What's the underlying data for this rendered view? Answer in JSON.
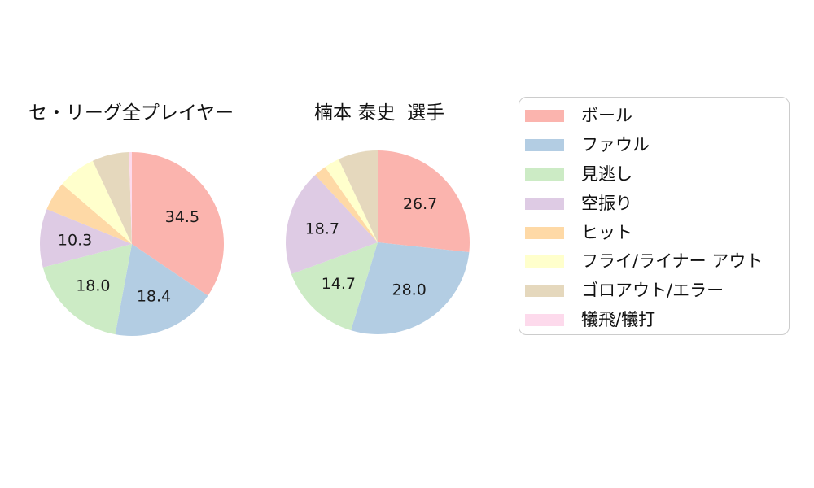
{
  "chart_data": [
    {
      "type": "pie",
      "title": "セ・リーグ全プレイヤー",
      "categories": [
        "ボール",
        "ファウル",
        "見逃し",
        "空振り",
        "ヒット",
        "フライ/ライナー アウト",
        "ゴロアウト/エラー",
        "犠飛/犠打"
      ],
      "values": [
        34.5,
        18.4,
        18.0,
        10.3,
        5.1,
        6.7,
        6.5,
        0.5
      ],
      "labels": [
        "34.5",
        "18.4",
        "18.0",
        "10.3",
        "",
        "",
        "",
        ""
      ],
      "colors": [
        "#fbb4ae",
        "#b3cde3",
        "#ccebc5",
        "#decbe4",
        "#fed9a6",
        "#ffffcc",
        "#e5d8bd",
        "#fddaec"
      ],
      "start_angle": "12-oclock",
      "direction": "clockwise",
      "label_radius_frac": 0.62,
      "label_color": "#1a1a1a"
    },
    {
      "type": "pie",
      "title": "楠本 泰史  選手",
      "categories": [
        "ボール",
        "ファウル",
        "見逃し",
        "空振り",
        "ヒット",
        "フライ/ライナー アウト",
        "ゴロアウト/エラー",
        "犠飛/犠打"
      ],
      "values": [
        26.7,
        28.0,
        14.7,
        18.7,
        2.2,
        2.7,
        7.0,
        0.0
      ],
      "labels": [
        "26.7",
        "28.0",
        "14.7",
        "18.7",
        "",
        "",
        "",
        ""
      ],
      "colors": [
        "#fbb4ae",
        "#b3cde3",
        "#ccebc5",
        "#decbe4",
        "#fed9a6",
        "#ffffcc",
        "#e5d8bd",
        "#fddaec"
      ],
      "start_angle": "12-oclock",
      "direction": "clockwise",
      "label_radius_frac": 0.62,
      "label_color": "#1a1a1a"
    }
  ],
  "legend": {
    "position": "right",
    "border_color": "#cccccc",
    "items": [
      {
        "label": "ボール",
        "color": "#fbb4ae"
      },
      {
        "label": "ファウル",
        "color": "#b3cde3"
      },
      {
        "label": "見逃し",
        "color": "#ccebc5"
      },
      {
        "label": "空振り",
        "color": "#decbe4"
      },
      {
        "label": "ヒット",
        "color": "#fed9a6"
      },
      {
        "label": "フライ/ライナー アウト",
        "color": "#ffffcc"
      },
      {
        "label": "ゴロアウト/エラー",
        "color": "#e5d8bd"
      },
      {
        "label": "犠飛/犠打",
        "color": "#fddaec"
      }
    ]
  }
}
